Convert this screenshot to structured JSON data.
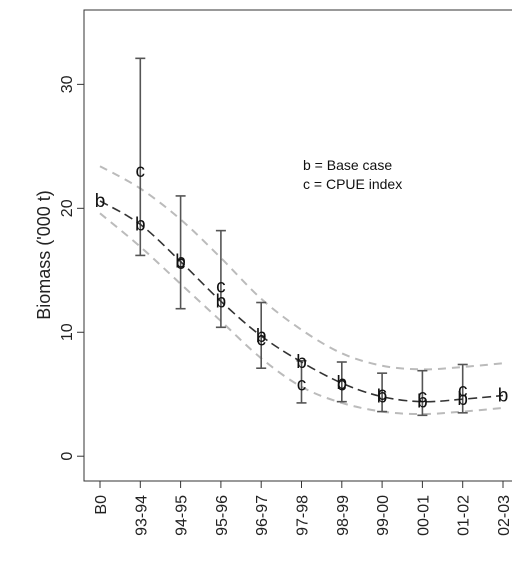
{
  "chart_data": {
    "type": "line",
    "title": "",
    "xlabel": "",
    "ylabel": "Biomass ('000 t)",
    "categories": [
      "B0",
      "93-94",
      "94-95",
      "95-96",
      "96-97",
      "97-98",
      "98-99",
      "99-00",
      "00-01",
      "01-02",
      "02-03"
    ],
    "ylim": [
      -2,
      36
    ],
    "yticks": [
      0,
      10,
      20,
      30
    ],
    "series": [
      {
        "letter": "b",
        "values": [
          20.6,
          18.7,
          15.7,
          12.5,
          9.7,
          7.6,
          5.9,
          4.8,
          4.4,
          4.6,
          4.9
        ]
      },
      {
        "letter": "c",
        "values": [
          null,
          23.0,
          15.6,
          13.7,
          9.4,
          5.8,
          5.8,
          5.0,
          4.8,
          5.3,
          null
        ],
        "err_low": [
          null,
          16.2,
          11.9,
          10.4,
          7.1,
          4.3,
          4.4,
          3.6,
          3.3,
          3.5,
          null
        ],
        "err_high": [
          null,
          32.1,
          21.0,
          18.2,
          12.4,
          7.7,
          7.6,
          6.7,
          6.9,
          7.4,
          null
        ]
      }
    ],
    "ci_upper": [
      23.4,
      21.6,
      19.1,
      16.0,
      12.7,
      10.2,
      8.3,
      7.3,
      7.0,
      7.2,
      7.5
    ],
    "ci_lower": [
      19.6,
      16.9,
      13.9,
      10.9,
      7.9,
      5.6,
      4.3,
      3.6,
      3.4,
      3.6,
      3.9
    ],
    "legend": {
      "placement": "top-right",
      "entries": [
        "b = Base case",
        "c = CPUE index"
      ]
    },
    "grid": false
  }
}
